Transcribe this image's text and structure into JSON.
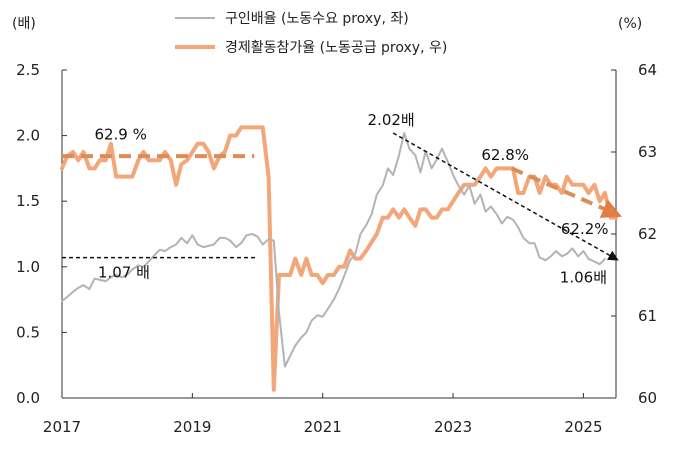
{
  "chart_data": {
    "type": "line",
    "left_unit": "(배)",
    "right_unit": "(%)",
    "x_ticks": [
      "2017",
      "2019",
      "2021",
      "2023",
      "2025"
    ],
    "x_range": [
      2017.0,
      2025.5
    ],
    "left_axis": {
      "range": [
        0.0,
        2.5
      ],
      "ticks": [
        "0.0",
        "0.5",
        "1.0",
        "1.5",
        "2.0",
        "2.5"
      ]
    },
    "right_axis": {
      "range": [
        60,
        64
      ],
      "ticks": [
        "60",
        "61",
        "62",
        "63",
        "64"
      ]
    },
    "legend": [
      {
        "label": "구인배율 (노동수요 proxy, 좌)",
        "color": "#b3b3b3"
      },
      {
        "label": "경제활동참가율 (노동공급 proxy, 우)",
        "color": "#f2a679"
      }
    ],
    "series": [
      {
        "name": "구인배율 (노동수요 proxy, 좌)",
        "axis": "left",
        "color": "#b3b3b3",
        "x": [
          2017.0,
          2017.08,
          2017.17,
          2017.25,
          2017.33,
          2017.42,
          2017.5,
          2017.58,
          2017.67,
          2017.75,
          2017.83,
          2017.92,
          2018.0,
          2018.08,
          2018.17,
          2018.25,
          2018.33,
          2018.42,
          2018.5,
          2018.58,
          2018.67,
          2018.75,
          2018.83,
          2018.92,
          2019.0,
          2019.08,
          2019.17,
          2019.25,
          2019.33,
          2019.42,
          2019.5,
          2019.58,
          2019.67,
          2019.75,
          2019.83,
          2019.92,
          2020.0,
          2020.08,
          2020.17,
          2020.25,
          2020.33,
          2020.42,
          2020.5,
          2020.58,
          2020.67,
          2020.75,
          2020.83,
          2020.92,
          2021.0,
          2021.08,
          2021.17,
          2021.25,
          2021.33,
          2021.42,
          2021.5,
          2021.58,
          2021.67,
          2021.75,
          2021.83,
          2021.92,
          2022.0,
          2022.08,
          2022.17,
          2022.25,
          2022.33,
          2022.42,
          2022.5,
          2022.58,
          2022.67,
          2022.75,
          2022.83,
          2022.92,
          2023.0,
          2023.08,
          2023.17,
          2023.25,
          2023.33,
          2023.42,
          2023.5,
          2023.58,
          2023.67,
          2023.75,
          2023.83,
          2023.92,
          2024.0,
          2024.08,
          2024.17,
          2024.25,
          2024.33,
          2024.42,
          2024.5,
          2024.58,
          2024.67,
          2024.75,
          2024.83,
          2024.92,
          2025.0,
          2025.08,
          2025.17,
          2025.25,
          2025.33
        ],
        "values": [
          0.74,
          0.77,
          0.81,
          0.84,
          0.86,
          0.83,
          0.91,
          0.9,
          0.89,
          0.92,
          0.94,
          0.92,
          0.94,
          0.98,
          1.01,
          1.0,
          1.04,
          1.09,
          1.13,
          1.12,
          1.15,
          1.17,
          1.22,
          1.18,
          1.24,
          1.17,
          1.15,
          1.16,
          1.17,
          1.22,
          1.22,
          1.2,
          1.15,
          1.18,
          1.24,
          1.25,
          1.23,
          1.17,
          1.21,
          1.2,
          0.65,
          0.24,
          0.32,
          0.4,
          0.46,
          0.5,
          0.59,
          0.63,
          0.62,
          0.68,
          0.75,
          0.83,
          0.93,
          1.05,
          1.1,
          1.25,
          1.32,
          1.4,
          1.55,
          1.62,
          1.75,
          1.7,
          1.85,
          2.02,
          1.9,
          1.85,
          1.72,
          1.88,
          1.75,
          1.82,
          1.9,
          1.8,
          1.7,
          1.62,
          1.55,
          1.62,
          1.48,
          1.55,
          1.42,
          1.46,
          1.4,
          1.33,
          1.38,
          1.36,
          1.3,
          1.22,
          1.18,
          1.18,
          1.07,
          1.05,
          1.08,
          1.12,
          1.08,
          1.1,
          1.14,
          1.08,
          1.12,
          1.06,
          1.04,
          1.02,
          1.06
        ]
      },
      {
        "name": "경제활동참가율 (노동공급 proxy, 우)",
        "axis": "right",
        "color": "#f2a679",
        "x": [
          2017.0,
          2017.08,
          2017.17,
          2017.25,
          2017.33,
          2017.42,
          2017.5,
          2017.58,
          2017.67,
          2017.75,
          2017.83,
          2017.92,
          2018.0,
          2018.08,
          2018.17,
          2018.25,
          2018.33,
          2018.42,
          2018.5,
          2018.58,
          2018.67,
          2018.75,
          2018.83,
          2018.92,
          2019.0,
          2019.08,
          2019.17,
          2019.25,
          2019.33,
          2019.42,
          2019.5,
          2019.58,
          2019.67,
          2019.75,
          2019.83,
          2019.92,
          2020.0,
          2020.08,
          2020.17,
          2020.25,
          2020.33,
          2020.42,
          2020.5,
          2020.58,
          2020.67,
          2020.75,
          2020.83,
          2020.92,
          2021.0,
          2021.08,
          2021.17,
          2021.25,
          2021.33,
          2021.42,
          2021.5,
          2021.58,
          2021.67,
          2021.75,
          2021.83,
          2021.92,
          2022.0,
          2022.08,
          2022.17,
          2022.25,
          2022.33,
          2022.42,
          2022.5,
          2022.58,
          2022.67,
          2022.75,
          2022.83,
          2022.92,
          2023.0,
          2023.08,
          2023.17,
          2023.25,
          2023.33,
          2023.42,
          2023.5,
          2023.58,
          2023.67,
          2023.75,
          2023.83,
          2023.92,
          2024.0,
          2024.08,
          2024.17,
          2024.25,
          2024.33,
          2024.42,
          2024.5,
          2024.58,
          2024.67,
          2024.75,
          2024.83,
          2024.92,
          2025.0,
          2025.08,
          2025.17,
          2025.25,
          2025.33,
          2025.42,
          2025.5
        ],
        "values": [
          62.8,
          62.95,
          63.0,
          62.9,
          63.0,
          62.8,
          62.8,
          62.9,
          62.9,
          63.1,
          62.7,
          62.7,
          62.7,
          62.7,
          62.9,
          63.0,
          62.9,
          62.9,
          62.9,
          63.0,
          62.9,
          62.6,
          62.85,
          62.9,
          63.0,
          63.1,
          63.1,
          63.0,
          62.8,
          62.95,
          63.0,
          63.2,
          63.2,
          63.3,
          63.3,
          63.3,
          63.3,
          63.3,
          62.7,
          60.1,
          61.5,
          61.5,
          61.5,
          61.7,
          61.5,
          61.7,
          61.5,
          61.5,
          61.4,
          61.5,
          61.5,
          61.6,
          61.6,
          61.8,
          61.7,
          61.7,
          61.8,
          61.9,
          62.0,
          62.2,
          62.2,
          62.3,
          62.2,
          62.3,
          62.2,
          62.1,
          62.3,
          62.3,
          62.2,
          62.2,
          62.3,
          62.3,
          62.4,
          62.5,
          62.6,
          62.6,
          62.6,
          62.7,
          62.8,
          62.7,
          62.8,
          62.8,
          62.8,
          62.8,
          62.5,
          62.5,
          62.7,
          62.7,
          62.5,
          62.7,
          62.6,
          62.6,
          62.5,
          62.7,
          62.6,
          62.6,
          62.6,
          62.5,
          62.6,
          62.4,
          62.5,
          62.2,
          62.2
        ]
      }
    ],
    "annotations": [
      {
        "text": "62.9 %",
        "axis": "right",
        "x": 2017.9,
        "y": 63.15,
        "anchor": "middle"
      },
      {
        "text": "1.07 배",
        "axis": "left",
        "x": 2017.95,
        "y": 0.92,
        "anchor": "middle"
      },
      {
        "text": "2.02배",
        "axis": "left",
        "x": 2022.05,
        "y": 2.08,
        "anchor": "middle"
      },
      {
        "text": "62.8%",
        "axis": "right",
        "x": 2023.8,
        "y": 62.9,
        "anchor": "middle"
      },
      {
        "text": "62.2%",
        "axis": "right",
        "x": 2025.02,
        "y": 62.0,
        "anchor": "middle"
      },
      {
        "text": "1.06배",
        "axis": "left",
        "x": 2025.0,
        "y": 0.88,
        "anchor": "middle"
      }
    ],
    "reference_lines": [
      {
        "style": "dashed",
        "color": "#e08b56",
        "axis": "right",
        "from": [
          2017.0,
          62.95
        ],
        "to": [
          2019.95,
          62.95
        ],
        "arrow": false
      },
      {
        "style": "dashed",
        "color": "#111111",
        "axis": "left",
        "from": [
          2017.0,
          1.07
        ],
        "to": [
          2020.0,
          1.07
        ],
        "arrow": false
      },
      {
        "style": "dashed",
        "color": "#111111",
        "axis": "left",
        "from": [
          2022.08,
          2.02
        ],
        "to": [
          2025.5,
          1.06
        ],
        "arrow": true
      },
      {
        "style": "dashed",
        "color": "#e08b56",
        "axis": "right",
        "from": [
          2023.9,
          62.8
        ],
        "to": [
          2025.48,
          62.25
        ],
        "arrow": true
      }
    ],
    "grid": false
  }
}
